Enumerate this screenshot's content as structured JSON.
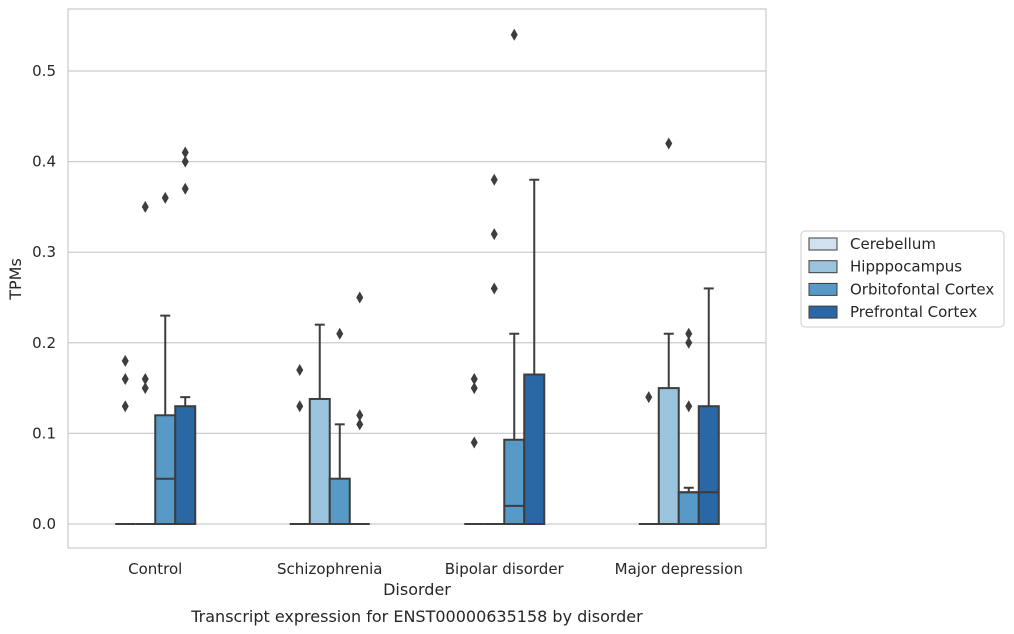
{
  "caption": "Transcript expression for ENST00000635158 by disorder",
  "chart_data": {
    "type": "boxplot",
    "xlabel": "Disorder",
    "ylabel": "TPMs",
    "ylim": [
      -0.027,
      0.568
    ],
    "yticks": [
      0.0,
      0.1,
      0.2,
      0.3,
      0.4,
      0.5
    ],
    "ytick_labels": [
      "0.0",
      "0.1",
      "0.2",
      "0.3",
      "0.4",
      "0.5"
    ],
    "grid": "horizontal",
    "legend_position": "right",
    "categories": [
      "Control",
      "Schizophrenia",
      "Bipolar disorder",
      "Major depression"
    ],
    "series": [
      {
        "name": "Cerebellum",
        "color": "#d1e1f0",
        "boxes": [
          {
            "q1": 0,
            "median": 0,
            "q3": 0,
            "whislo": 0,
            "whishi": 0,
            "fliers": [
              0.13,
              0.16,
              0.18
            ]
          },
          {
            "q1": 0,
            "median": 0,
            "q3": 0,
            "whislo": 0,
            "whishi": 0,
            "fliers": [
              0.13,
              0.17
            ]
          },
          {
            "q1": 0,
            "median": 0,
            "q3": 0,
            "whislo": 0,
            "whishi": 0,
            "fliers": [
              0.09,
              0.15,
              0.16
            ]
          },
          {
            "q1": 0,
            "median": 0,
            "q3": 0,
            "whislo": 0,
            "whishi": 0,
            "fliers": [
              0.14
            ]
          }
        ]
      },
      {
        "name": "Hipppocampus",
        "color": "#9ac4de",
        "boxes": [
          {
            "q1": 0,
            "median": 0,
            "q3": 0,
            "whislo": 0,
            "whishi": 0,
            "fliers": [
              0.15,
              0.16,
              0.35
            ]
          },
          {
            "q1": 0,
            "median": 0,
            "q3": 0.138,
            "whislo": 0,
            "whishi": 0.22,
            "fliers": []
          },
          {
            "q1": 0,
            "median": 0,
            "q3": 0,
            "whislo": 0,
            "whishi": 0,
            "fliers": [
              0.26,
              0.32,
              0.38
            ]
          },
          {
            "q1": 0,
            "median": 0,
            "q3": 0.15,
            "whislo": 0,
            "whishi": 0.21,
            "fliers": [
              0.42
            ]
          }
        ]
      },
      {
        "name": "Orbitofontal Cortex",
        "color": "#5799c7",
        "boxes": [
          {
            "q1": 0,
            "median": 0.05,
            "q3": 0.12,
            "whislo": 0,
            "whishi": 0.23,
            "fliers": [
              0.36
            ]
          },
          {
            "q1": 0,
            "median": 0,
            "q3": 0.05,
            "whislo": 0,
            "whishi": 0.11,
            "fliers": [
              0.21
            ]
          },
          {
            "q1": 0,
            "median": 0.02,
            "q3": 0.093,
            "whislo": 0,
            "whishi": 0.21,
            "fliers": [
              0.54
            ]
          },
          {
            "q1": 0,
            "median": 0.035,
            "q3": 0.035,
            "whislo": 0,
            "whishi": 0.04,
            "fliers": [
              0.13,
              0.2,
              0.21
            ]
          }
        ]
      },
      {
        "name": "Prefrontal Cortex",
        "color": "#2a67a5",
        "boxes": [
          {
            "q1": 0,
            "median": 0,
            "q3": 0.13,
            "whislo": 0,
            "whishi": 0.14,
            "fliers": [
              0.37,
              0.4,
              0.41
            ]
          },
          {
            "q1": 0,
            "median": 0,
            "q3": 0,
            "whislo": 0,
            "whishi": 0,
            "fliers": [
              0.11,
              0.12,
              0.25
            ]
          },
          {
            "q1": 0,
            "median": 0,
            "q3": 0.165,
            "whislo": 0,
            "whishi": 0.38,
            "fliers": []
          },
          {
            "q1": 0,
            "median": 0.035,
            "q3": 0.13,
            "whislo": 0,
            "whishi": 0.26,
            "fliers": []
          }
        ]
      }
    ]
  }
}
